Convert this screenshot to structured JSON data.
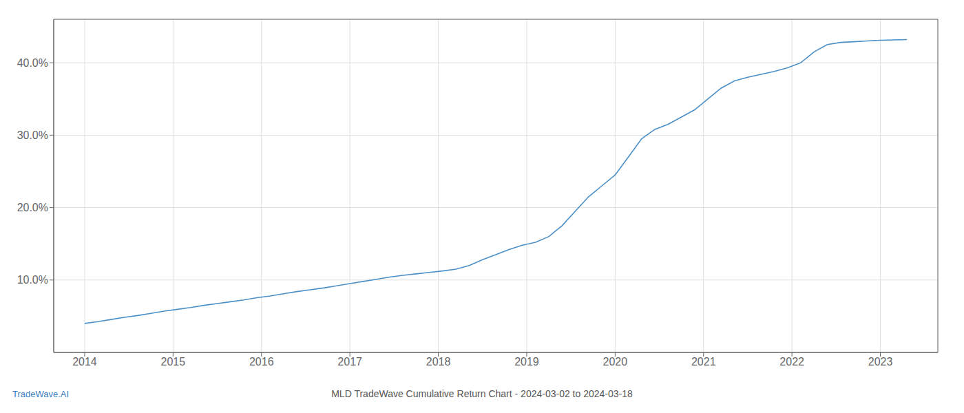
{
  "chart_data": {
    "type": "line",
    "title": "MLD TradeWave Cumulative Return Chart - 2024-03-02 to 2024-03-18",
    "annotations": [
      {
        "text": "TradeWave.AI"
      }
    ],
    "color": "#4a8fc7",
    "grid": true,
    "x": [
      2014.0,
      2014.15,
      2014.3,
      2014.45,
      2014.6,
      2014.75,
      2014.9,
      2015.05,
      2015.2,
      2015.35,
      2015.5,
      2015.65,
      2015.8,
      2015.95,
      2016.1,
      2016.25,
      2016.4,
      2016.55,
      2016.7,
      2016.85,
      2017.0,
      2017.15,
      2017.3,
      2017.45,
      2017.6,
      2017.75,
      2017.9,
      2018.05,
      2018.2,
      2018.35,
      2018.5,
      2018.65,
      2018.8,
      2018.95,
      2019.1,
      2019.25,
      2019.4,
      2019.55,
      2019.7,
      2019.85,
      2020.0,
      2020.15,
      2020.3,
      2020.45,
      2020.6,
      2020.75,
      2020.9,
      2021.05,
      2021.2,
      2021.35,
      2021.5,
      2021.65,
      2021.8,
      2021.95,
      2022.1,
      2022.25,
      2022.4,
      2022.55,
      2022.7,
      2022.85,
      2023.0,
      2023.15,
      2023.3
    ],
    "values": [
      4.0,
      4.25,
      4.55,
      4.85,
      5.1,
      5.4,
      5.7,
      5.95,
      6.2,
      6.5,
      6.75,
      7.0,
      7.25,
      7.55,
      7.8,
      8.1,
      8.4,
      8.65,
      8.9,
      9.2,
      9.5,
      9.8,
      10.1,
      10.4,
      10.65,
      10.85,
      11.05,
      11.25,
      11.5,
      12.0,
      12.8,
      13.5,
      14.2,
      14.8,
      15.2,
      16.0,
      17.5,
      19.5,
      21.5,
      23.0,
      24.5,
      27.0,
      29.5,
      30.8,
      31.5,
      32.5,
      33.5,
      35.0,
      36.5,
      37.5,
      38.0,
      38.4,
      38.8,
      39.3,
      40.0,
      41.5,
      42.5,
      42.8,
      42.9,
      43.0,
      43.1,
      43.15,
      43.2
    ],
    "xlim": [
      2013.65,
      2023.65
    ],
    "xticks": [
      2014,
      2015,
      2016,
      2017,
      2018,
      2019,
      2020,
      2021,
      2022,
      2023
    ],
    "ylim": [
      0,
      46
    ],
    "yticks": [
      {
        "value": 10.0,
        "label": "10.0%"
      },
      {
        "value": 20.0,
        "label": "20.0%"
      },
      {
        "value": 30.0,
        "label": "30.0%"
      },
      {
        "value": 40.0,
        "label": "40.0%"
      }
    ]
  }
}
